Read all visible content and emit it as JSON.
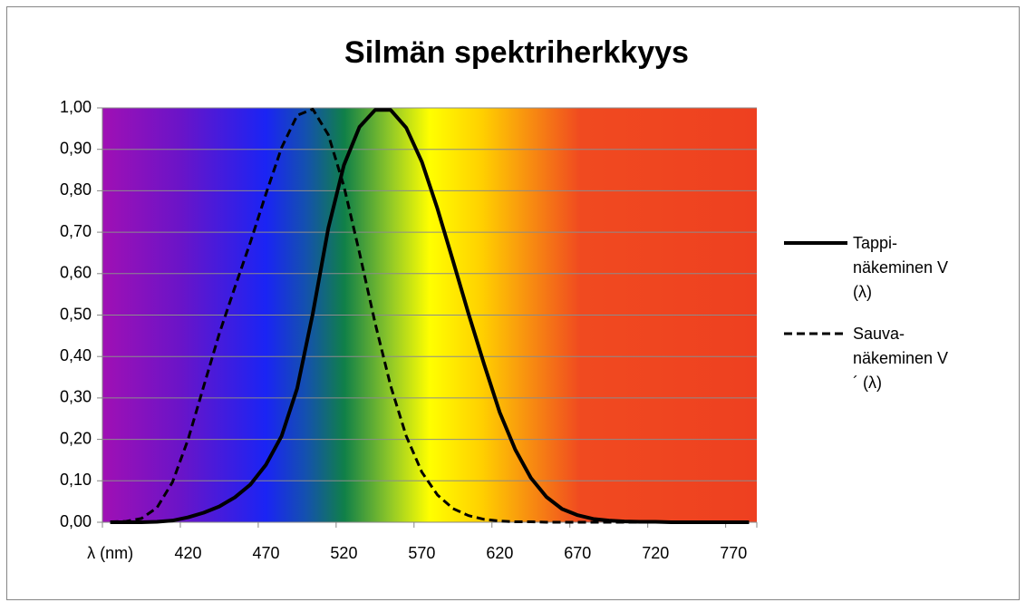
{
  "chart_data": {
    "type": "line",
    "title": "Silmän spektriherkkyys",
    "categories": [
      "λ (nm)",
      null,
      null,
      null,
      null,
      "420",
      null,
      null,
      null,
      null,
      "470",
      null,
      null,
      null,
      null,
      "520",
      null,
      null,
      null,
      null,
      "570",
      null,
      null,
      null,
      null,
      "620",
      null,
      null,
      null,
      null,
      "670",
      null,
      null,
      null,
      null,
      "720",
      null,
      null,
      null,
      null,
      "770",
      null
    ],
    "series": [
      {
        "name": "Tappi-näkeminen V (λ)",
        "color": "#000000",
        "dash": "solid",
        "values": [
          0,
          0,
          0,
          0.001,
          0.004,
          0.012,
          0.023,
          0.038,
          0.06,
          0.091,
          0.139,
          0.208,
          0.323,
          0.503,
          0.71,
          0.862,
          0.954,
          0.995,
          0.995,
          0.952,
          0.87,
          0.757,
          0.631,
          0.503,
          0.381,
          0.265,
          0.175,
          0.107,
          0.061,
          0.032,
          0.017,
          0.008,
          0.004,
          0.002,
          0.001,
          0.001,
          0,
          0,
          0,
          0,
          0,
          0
        ]
      },
      {
        "name": "Sauva-näkeminen V´ (λ)",
        "color": "#000000",
        "dash": "dashed",
        "values": [
          0.001,
          0.002,
          0.009,
          0.035,
          0.097,
          0.2,
          0.328,
          0.455,
          0.567,
          0.676,
          0.793,
          0.904,
          0.982,
          0.997,
          0.935,
          0.811,
          0.65,
          0.481,
          0.329,
          0.208,
          0.121,
          0.066,
          0.033,
          0.016,
          0.007,
          0.003,
          0.001,
          0.001,
          0,
          0,
          0,
          0,
          0,
          0,
          0,
          0,
          0,
          0,
          0,
          0,
          0,
          0
        ]
      }
    ],
    "ylim": [
      0,
      1
    ],
    "yticks": [
      {
        "value": 0,
        "label": "0,00"
      },
      {
        "value": 0.1,
        "label": "0,10"
      },
      {
        "value": 0.2,
        "label": "0,20"
      },
      {
        "value": 0.3,
        "label": "0,30"
      },
      {
        "value": 0.4,
        "label": "0,40"
      },
      {
        "value": 0.5,
        "label": "0,50"
      },
      {
        "value": 0.6,
        "label": "0,60"
      },
      {
        "value": 0.7,
        "label": "0,70"
      },
      {
        "value": 0.8,
        "label": "0,80"
      },
      {
        "value": 0.9,
        "label": "0,90"
      },
      {
        "value": 1,
        "label": "1,00"
      }
    ],
    "grid": true,
    "legend": "right"
  }
}
